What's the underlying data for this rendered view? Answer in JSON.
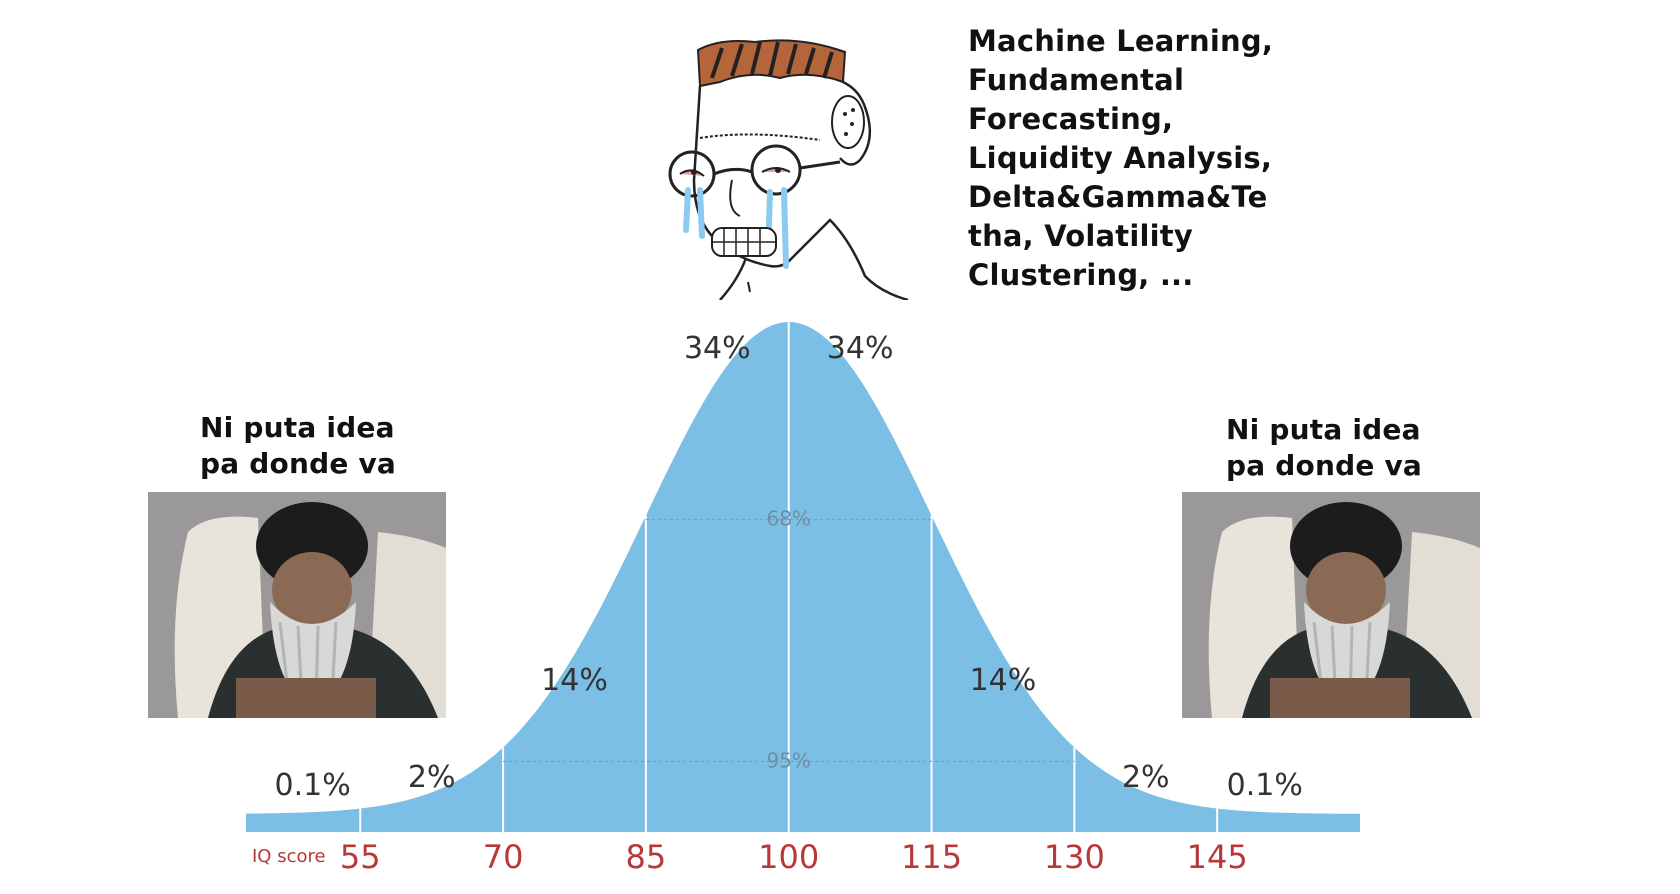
{
  "top_caption": "Machine Learning,\nFundamental\nForecasting,\nLiquidity Analysis,\nDelta&Gamma&Te\ntha, Volatility\nClustering, ...",
  "left_caption": "Ni puta idea\npa donde va",
  "right_caption": "Ni puta idea\npa donde va",
  "icons": {
    "center_character": "crying-wojak-icon",
    "left_photo": "bearded-man-photo-icon",
    "right_photo": "bearded-man-photo-icon"
  },
  "colors": {
    "curve_fill": "#7bbfe6",
    "score_labels": "#b8383a",
    "percent_labels": "#333333",
    "hair": "#b5653a",
    "tears": "#8ccbf0"
  },
  "chart_data": {
    "type": "area",
    "x_label": "IQ score",
    "ticks": [
      "55",
      "70",
      "85",
      "100",
      "115",
      "130",
      "145"
    ],
    "tick_values": [
      55,
      70,
      85,
      100,
      115,
      130,
      145
    ],
    "x_range": [
      43,
      160
    ],
    "band_labels": [
      {
        "text": "0.1%",
        "x": 50
      },
      {
        "text": "2%",
        "x": 62.5
      },
      {
        "text": "14%",
        "x": 77.5
      },
      {
        "text": "34%",
        "x": 92.5
      },
      {
        "text": "34%",
        "x": 107.5
      },
      {
        "text": "14%",
        "x": 122.5
      },
      {
        "text": "2%",
        "x": 137.5
      },
      {
        "text": "0.1%",
        "x": 150
      }
    ],
    "span_labels": [
      {
        "text": "68%",
        "from": 85,
        "to": 115
      },
      {
        "text": "95%",
        "from": 70,
        "to": 130
      }
    ],
    "distribution": {
      "mean": 100,
      "sd": 15
    }
  }
}
